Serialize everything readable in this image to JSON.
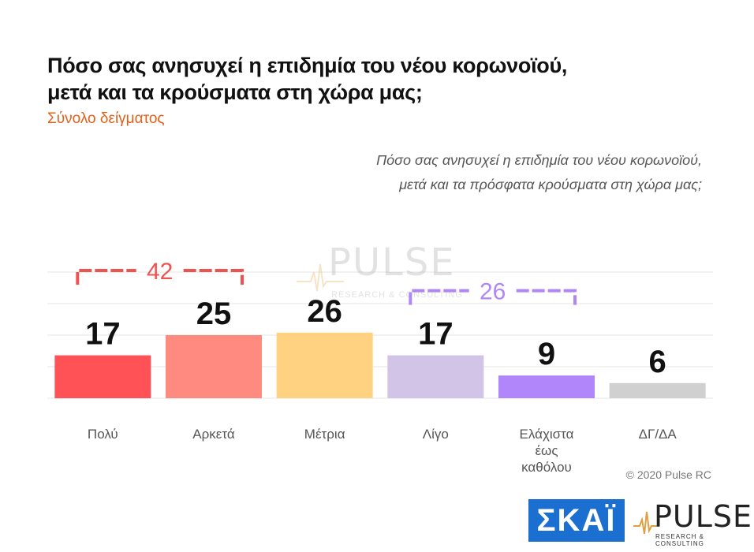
{
  "title_lines": [
    "Πόσο σας ανησυχεί η επιδημία του νέου κορωνοϊού,",
    "μετά και τα κρούσματα στη χώρα μας;"
  ],
  "subtitle": "Σύνολο δείγματος",
  "question_lines": [
    "Πόσο σας ανησυχεί η επιδημία του νέου κορωνοϊού,",
    "μετά και τα πρόσφατα κρούσματα στη χώρα μας;"
  ],
  "copyright": "© 2020 Pulse RC",
  "logos": {
    "skai": "ΣΚΑΪ",
    "pulse_name": "PULSE",
    "pulse_sub": "RESEARCH & CONSULTING"
  },
  "chart_data": {
    "type": "bar",
    "categories": [
      "Πολύ",
      "Αρκετά",
      "Μέτρια",
      "Λίγο",
      "Ελάχιστα έως καθόλου",
      "ΔΓ/ΔΑ"
    ],
    "category_lines": [
      [
        "Πολύ"
      ],
      [
        "Αρκετά"
      ],
      [
        "Μέτρια"
      ],
      [
        "Λίγο"
      ],
      [
        "Ελάχιστα",
        "έως",
        "καθόλου"
      ],
      [
        "ΔΓ/ΔΑ"
      ]
    ],
    "values": [
      17,
      25,
      26,
      17,
      9,
      6
    ],
    "colors": [
      "#ff5257",
      "#ff8a80",
      "#ffd281",
      "#d2c4e6",
      "#b186fb",
      "#d0d0d0"
    ],
    "ylim": [
      0,
      50
    ],
    "grid": true,
    "groups": [
      {
        "label": "42",
        "from": 0,
        "to": 1,
        "color": "#ef5350"
      },
      {
        "label": "26",
        "from": 3,
        "to": 4,
        "color": "#b086f5"
      }
    ]
  }
}
